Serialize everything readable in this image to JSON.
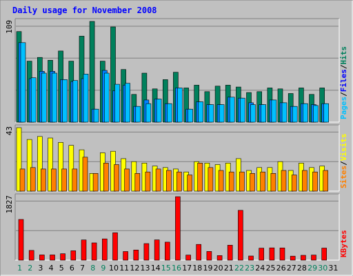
{
  "title": "Daily usage for November 2008",
  "colors": {
    "background": "#c0c0c0",
    "frame_dark": "#808080",
    "frame_light": "#ffffff",
    "title_text": "#0000ff",
    "hits_fill": "#00805c",
    "files_fill": "#0080ff",
    "pages_fill": "#00c0ff",
    "visits_fill": "#ffff00",
    "sites_fill": "#ff8000",
    "kbytes_fill": "#ff0000",
    "hits_label": "#00805c",
    "files_label": "#0000ff",
    "pages_label": "#00c0ff",
    "visits_label": "#ffff00",
    "sites_label": "#ff8000",
    "kbytes_label": "#ff0000",
    "weekend_day": "#00805c",
    "weekday": "#000000",
    "grid": "#808080",
    "outline": "#000000"
  },
  "chart_data": [
    {
      "type": "bar",
      "panel": "top",
      "ymax_label": "109",
      "ylim": [
        0,
        109
      ],
      "categories": [
        "1",
        "2",
        "3",
        "4",
        "5",
        "6",
        "7",
        "8",
        "9",
        "10",
        "11",
        "12",
        "13",
        "14",
        "15",
        "16",
        "17",
        "18",
        "19",
        "20",
        "21",
        "22",
        "23",
        "24",
        "25",
        "26",
        "27",
        "28",
        "29",
        "30",
        "31"
      ],
      "series": [
        {
          "name": "Hits",
          "values": [
            98,
            66,
            70,
            67,
            77,
            66,
            93,
            109,
            66,
            103,
            57,
            30,
            53,
            36,
            46,
            54,
            37,
            40,
            33,
            39,
            40,
            38,
            32,
            33,
            37,
            36,
            31,
            37,
            30,
            37,
            0
          ]
        },
        {
          "name": "Files",
          "values": [
            86,
            47,
            55,
            55,
            46,
            44,
            47,
            14,
            56,
            34,
            40,
            17,
            24,
            25,
            20,
            37,
            14,
            22,
            19,
            19,
            27,
            26,
            21,
            19,
            24,
            21,
            17,
            20,
            19,
            20,
            0
          ]
        },
        {
          "name": "Pages",
          "values": [
            86,
            48,
            53,
            53,
            46,
            45,
            52,
            14,
            53,
            41,
            42,
            17,
            20,
            25,
            20,
            37,
            14,
            22,
            19,
            19,
            27,
            26,
            19,
            19,
            24,
            21,
            17,
            20,
            18,
            20,
            0
          ]
        }
      ],
      "legend": [
        "Pages",
        "/",
        "Files",
        "/",
        "Hits"
      ]
    },
    {
      "type": "bar",
      "panel": "middle",
      "ymax_label": "43",
      "ylim": [
        0,
        43
      ],
      "categories": [
        "1",
        "2",
        "3",
        "4",
        "5",
        "6",
        "7",
        "8",
        "9",
        "10",
        "11",
        "12",
        "13",
        "14",
        "15",
        "16",
        "17",
        "18",
        "19",
        "20",
        "21",
        "22",
        "23",
        "24",
        "25",
        "26",
        "27",
        "28",
        "29",
        "30",
        "31"
      ],
      "series": [
        {
          "name": "Visits",
          "values": [
            43,
            35,
            37,
            36,
            33,
            31,
            28,
            12,
            26,
            27,
            22,
            20,
            19,
            17,
            16,
            15,
            13,
            20,
            19,
            18,
            19,
            22,
            14,
            16,
            16,
            20,
            14,
            19,
            16,
            17,
            0
          ]
        },
        {
          "name": "Sites",
          "values": [
            15,
            16,
            15,
            15,
            15,
            15,
            23,
            12,
            19,
            18,
            15,
            12,
            13,
            15,
            14,
            13,
            11,
            19,
            16,
            14,
            13,
            13,
            12,
            13,
            12,
            14,
            11,
            14,
            13,
            14,
            0
          ]
        }
      ],
      "legend": [
        "Sites",
        "/",
        "Visits"
      ]
    },
    {
      "type": "bar",
      "panel": "bottom",
      "ymax_label": "1827",
      "ylim": [
        0,
        1827
      ],
      "categories": [
        "1",
        "2",
        "3",
        "4",
        "5",
        "6",
        "7",
        "8",
        "9",
        "10",
        "11",
        "12",
        "13",
        "14",
        "15",
        "16",
        "17",
        "18",
        "19",
        "20",
        "21",
        "22",
        "23",
        "24",
        "25",
        "26",
        "27",
        "28",
        "29",
        "30",
        "31"
      ],
      "series": [
        {
          "name": "KBytes",
          "values": [
            1171,
            280,
            151,
            151,
            184,
            271,
            582,
            496,
            611,
            789,
            249,
            291,
            477,
            583,
            519,
            1827,
            146,
            453,
            250,
            131,
            431,
            1433,
            120,
            345,
            353,
            351,
            116,
            140,
            147,
            347,
            0
          ]
        }
      ],
      "legend": [
        "KBytes"
      ]
    }
  ],
  "x_axis": {
    "labels": [
      "1",
      "2",
      "3",
      "4",
      "5",
      "6",
      "7",
      "8",
      "9",
      "10",
      "11",
      "12",
      "13",
      "14",
      "15",
      "16",
      "17",
      "18",
      "19",
      "20",
      "21",
      "22",
      "23",
      "24",
      "25",
      "26",
      "27",
      "28",
      "29",
      "30",
      "31"
    ],
    "weekend_days": [
      "1",
      "2",
      "8",
      "9",
      "15",
      "16",
      "22",
      "23",
      "29",
      "30"
    ]
  }
}
